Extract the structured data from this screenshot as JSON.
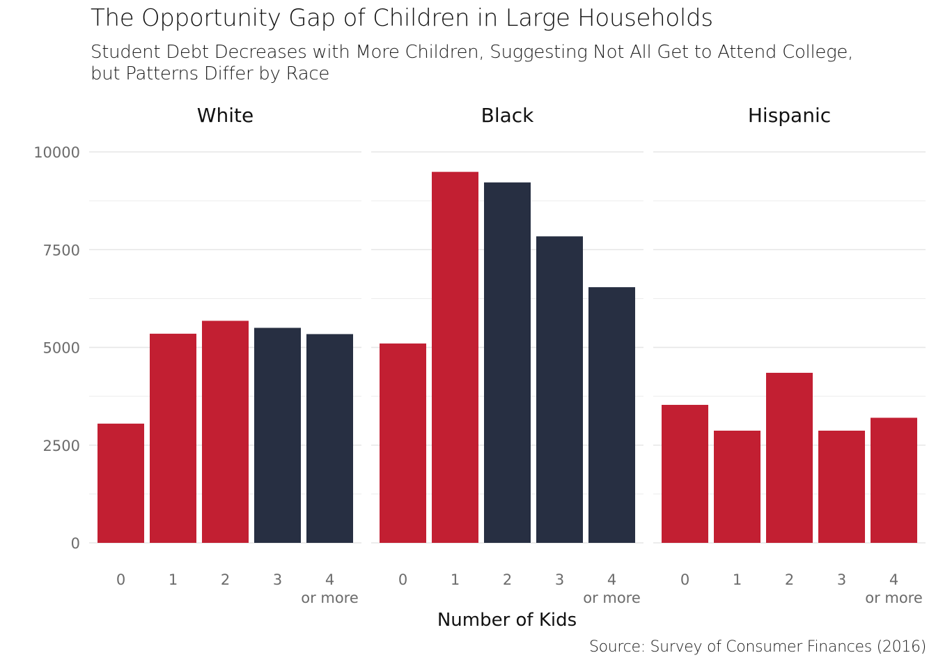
{
  "title": "The Opportunity Gap of Children in Large Households",
  "subtitle_lines": [
    "Student Debt Decreases with More Children, Suggesting Not All Get to Attend College,",
    "but Patterns Differ by Race"
  ],
  "source": "Source: Survey of Consumer Finances (2016)",
  "colors": {
    "highlight": "#c21f32",
    "muted": "#272f42",
    "grid": "#e6e6e6"
  },
  "chart_data": {
    "type": "bar",
    "xlabel": "Number of Kids",
    "ylabel": "",
    "ylim": [
      0,
      10000
    ],
    "y_ticks": [
      0,
      2500,
      5000,
      7500,
      10000
    ],
    "categories": [
      "0",
      "1",
      "2",
      "3",
      "4\nor more"
    ],
    "grid": true,
    "facets": [
      {
        "name": "White",
        "values": [
          3050,
          5350,
          5680,
          5500,
          5340
        ],
        "colors": [
          "highlight",
          "highlight",
          "highlight",
          "muted",
          "muted"
        ]
      },
      {
        "name": "Black",
        "values": [
          5100,
          9490,
          9220,
          7840,
          6540
        ],
        "colors": [
          "highlight",
          "highlight",
          "muted",
          "muted",
          "muted"
        ]
      },
      {
        "name": "Hispanic",
        "values": [
          3530,
          2870,
          4350,
          2870,
          3200
        ],
        "colors": [
          "highlight",
          "highlight",
          "highlight",
          "highlight",
          "highlight"
        ]
      }
    ]
  }
}
